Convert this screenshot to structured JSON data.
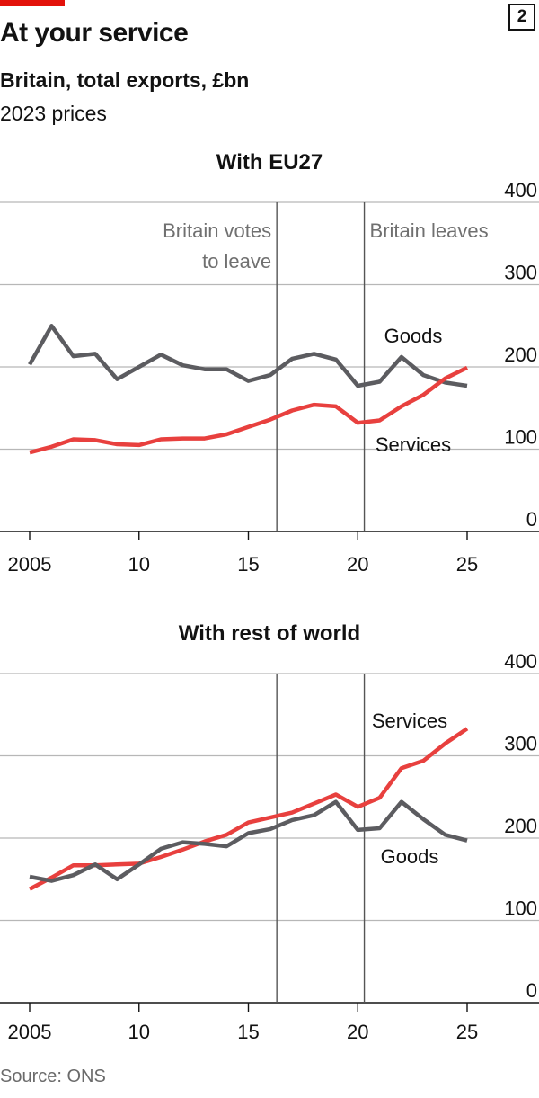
{
  "header": {
    "chart_number": "2",
    "title": "At your service",
    "subtitle": "Britain, total exports, £bn",
    "units": "2023 prices"
  },
  "source": "Source: ONS",
  "colors": {
    "goods": "#5c5c60",
    "services": "#e8403e",
    "accent": "#e3120b",
    "gridline": "#b7b7b7",
    "event_line": "#555555"
  },
  "chart_data": [
    {
      "type": "line",
      "title": "With EU27",
      "x": [
        2005,
        2006,
        2007,
        2008,
        2009,
        2010,
        2011,
        2012,
        2013,
        2014,
        2015,
        2016,
        2017,
        2018,
        2019,
        2020,
        2021,
        2022,
        2023,
        2024,
        2025
      ],
      "x_tick_labels": [
        "2005",
        "10",
        "15",
        "20",
        "25"
      ],
      "x_tick_values": [
        2005,
        2010,
        2015,
        2020,
        2025
      ],
      "xlim": [
        2004,
        2028
      ],
      "ylim": [
        0,
        400
      ],
      "y_ticks": [
        0,
        100,
        200,
        300,
        400
      ],
      "y_tick_labels": [
        "0",
        "100",
        "200",
        "300",
        "400"
      ],
      "grid": true,
      "series": [
        {
          "name": "Goods",
          "color": "#5c5c60",
          "values": [
            203,
            250,
            213,
            216,
            185,
            200,
            215,
            202,
            197,
            197,
            183,
            190,
            210,
            216,
            209,
            177,
            182,
            212,
            190,
            181,
            177
          ]
        },
        {
          "name": "Services",
          "color": "#e8403e",
          "values": [
            96,
            103,
            112,
            111,
            106,
            105,
            112,
            113,
            113,
            118,
            127,
            136,
            147,
            154,
            152,
            132,
            135,
            152,
            166,
            186,
            199
          ]
        }
      ],
      "annotations": [
        {
          "text": [
            "Britain votes",
            "to leave"
          ],
          "x": 2016.3
        },
        {
          "text": [
            "Britain leaves"
          ],
          "x": 2020.3
        }
      ]
    },
    {
      "type": "line",
      "title": "With rest of world",
      "x": [
        2005,
        2006,
        2007,
        2008,
        2009,
        2010,
        2011,
        2012,
        2013,
        2014,
        2015,
        2016,
        2017,
        2018,
        2019,
        2020,
        2021,
        2022,
        2023,
        2024,
        2025
      ],
      "x_tick_labels": [
        "2005",
        "10",
        "15",
        "20",
        "25"
      ],
      "x_tick_values": [
        2005,
        2010,
        2015,
        2020,
        2025
      ],
      "xlim": [
        2004,
        2028
      ],
      "ylim": [
        0,
        400
      ],
      "y_ticks": [
        0,
        100,
        200,
        300,
        400
      ],
      "y_tick_labels": [
        "0",
        "100",
        "200",
        "300",
        "400"
      ],
      "grid": true,
      "series": [
        {
          "name": "Services",
          "color": "#e8403e",
          "values": [
            138,
            152,
            167,
            167,
            168,
            169,
            177,
            186,
            196,
            204,
            219,
            225,
            231,
            242,
            253,
            238,
            249,
            285,
            294,
            315,
            333
          ]
        },
        {
          "name": "Goods",
          "color": "#5c5c60",
          "values": [
            153,
            148,
            155,
            168,
            150,
            168,
            187,
            195,
            193,
            190,
            206,
            211,
            222,
            228,
            244,
            210,
            212,
            244,
            223,
            204,
            197
          ]
        }
      ],
      "annotations": [
        {
          "text": [
            ""
          ],
          "x": 2016.3
        },
        {
          "text": [
            ""
          ],
          "x": 2020.3
        }
      ]
    }
  ]
}
